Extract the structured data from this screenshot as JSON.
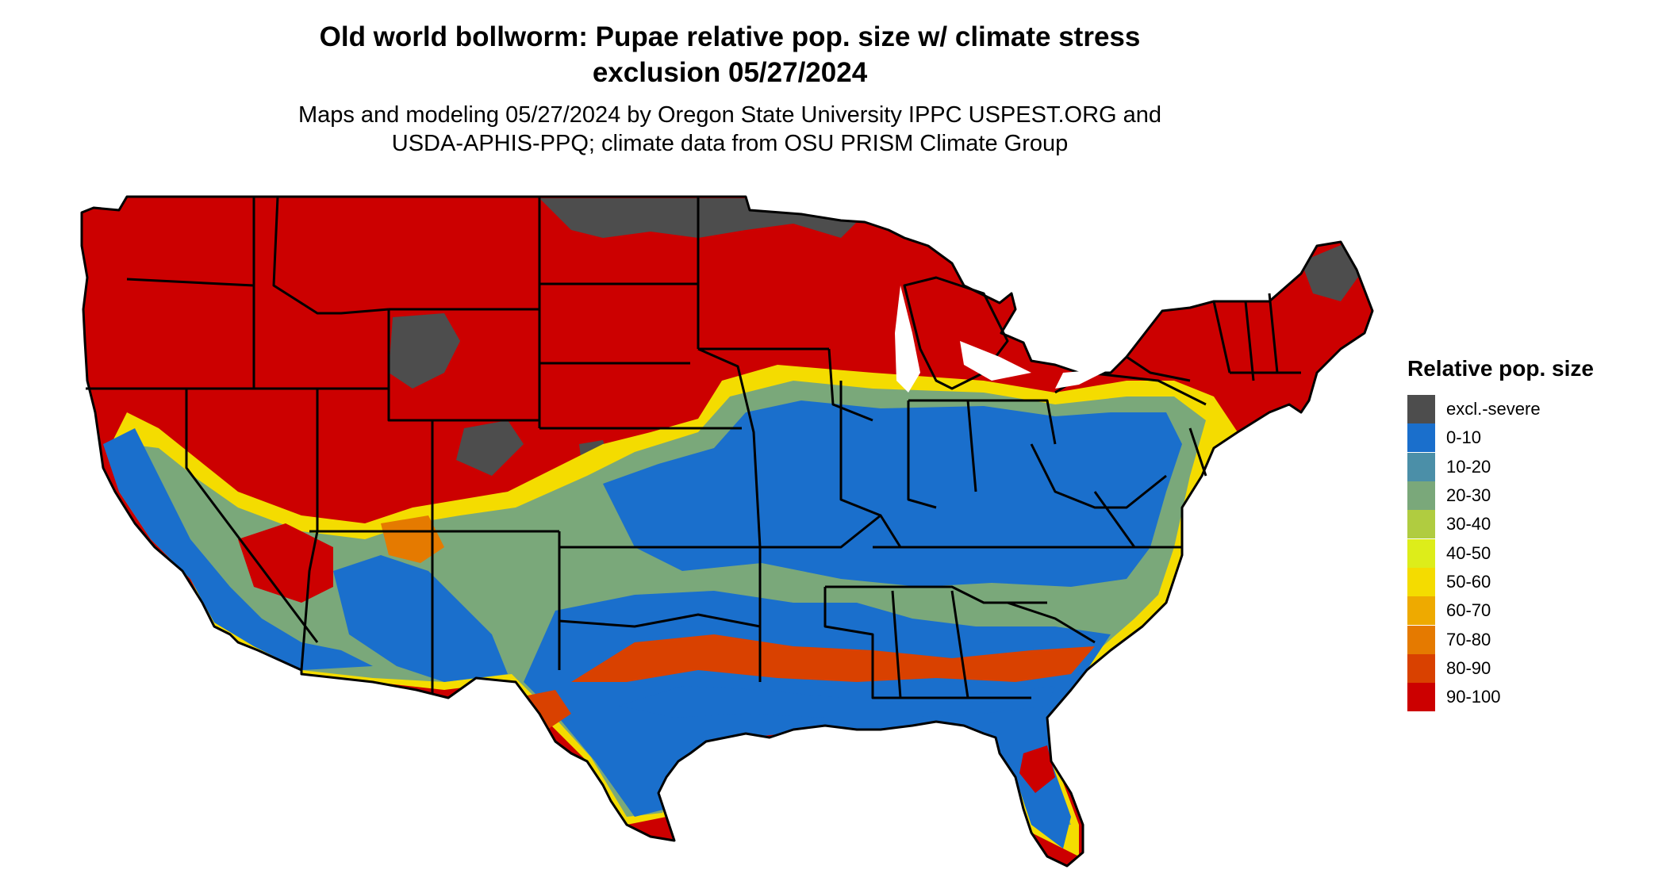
{
  "title": {
    "line1": "Old world bollworm: Pupae relative pop. size w/ climate stress",
    "line2": "exclusion 05/27/2024"
  },
  "subtitle": {
    "line1": "Maps and modeling 05/27/2024 by Oregon State University IPPC USPEST.ORG and",
    "line2": "USDA-APHIS-PPQ; climate data from OSU PRISM Climate Group"
  },
  "legend": {
    "title": "Relative pop. size",
    "items": [
      {
        "label": "excl.-severe",
        "color": "#4d4d4d"
      },
      {
        "label": "0-10",
        "color": "#1a6fcc"
      },
      {
        "label": "10-20",
        "color": "#4b8fa8"
      },
      {
        "label": "20-30",
        "color": "#7aa87a"
      },
      {
        "label": "30-40",
        "color": "#b0cc40"
      },
      {
        "label": "40-50",
        "color": "#dded1a"
      },
      {
        "label": "50-60",
        "color": "#f4dc00"
      },
      {
        "label": "60-70",
        "color": "#eeaa00"
      },
      {
        "label": "70-80",
        "color": "#e57a00"
      },
      {
        "label": "80-90",
        "color": "#d94100"
      },
      {
        "label": "90-100",
        "color": "#cc0000"
      }
    ]
  }
}
